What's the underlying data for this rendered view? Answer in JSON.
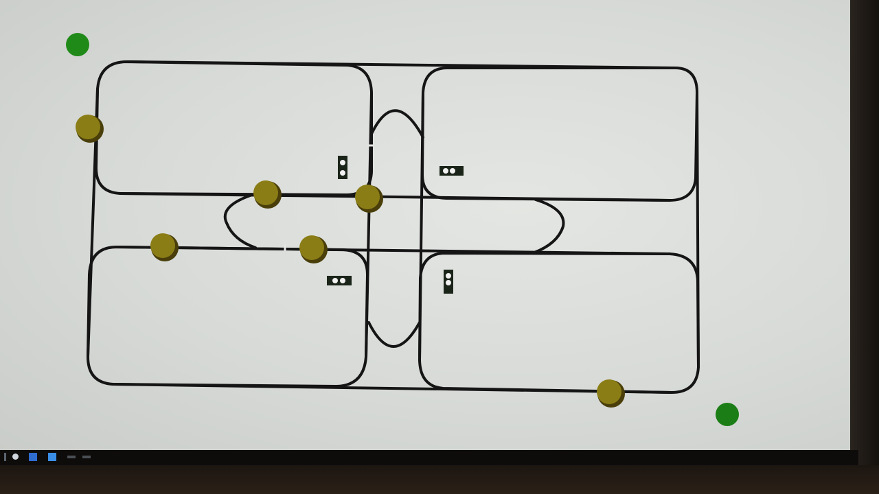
{
  "scene": {
    "description_colors": {
      "screen": "#dcdedb",
      "track_line": "#151515",
      "block_token": "#8b7d16",
      "block_token_edge": "#5a4f0c",
      "marker_green": "#1f8a18",
      "signal_body": "#1b2418",
      "signal_lamp": "#f2f2f2"
    },
    "taskbar": {
      "icons": [
        "windows-start-icon",
        "task-view-icon",
        "file-explorer-icon",
        "visual-studio-icon",
        "app-icon"
      ],
      "clock_time": "",
      "clock_date": ""
    }
  }
}
